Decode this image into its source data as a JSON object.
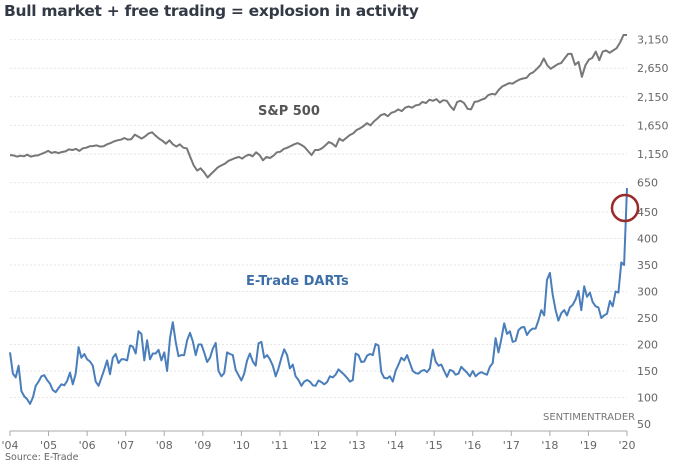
{
  "chart_data": {
    "type": "line",
    "title": "Bull market + free trading = explosion in activity",
    "source": "Source: E-Trade",
    "watermark": "SENTIMENTRADER",
    "x_ticks": [
      "'04",
      "'05",
      "'06",
      "'07",
      "'08",
      "'09",
      "'10",
      "'11",
      "'12",
      "'13",
      "'14",
      "'15",
      "'16",
      "'17",
      "'18",
      "'19",
      "'20"
    ],
    "x_range": [
      2004.0,
      2020.0
    ],
    "axes": [
      {
        "name": "sp500-axis",
        "ticks": [
          650,
          1150,
          1650,
          2150,
          2650,
          3150
        ],
        "tick_labels": [
          "650",
          "1,150",
          "1,650",
          "2,150",
          "2,650",
          "3,150"
        ]
      },
      {
        "name": "darts-axis",
        "ticks": [
          50,
          100,
          150,
          200,
          250,
          300,
          350,
          400,
          450
        ],
        "tick_labels": [
          "50",
          "100",
          "150",
          "200",
          "250",
          "300",
          "350",
          "400",
          "450"
        ]
      }
    ],
    "series": [
      {
        "name": "S&P 500",
        "label": "S&P 500",
        "color": "#777777",
        "x_start": 2004.0,
        "x_step": 0.1667,
        "values": [
          1130,
          1125,
          1105,
          1120,
          1110,
          1140,
          1105,
          1120,
          1125,
          1150,
          1175,
          1205,
          1170,
          1185,
          1165,
          1185,
          1195,
          1230,
          1220,
          1240,
          1205,
          1250,
          1260,
          1285,
          1290,
          1300,
          1280,
          1285,
          1320,
          1340,
          1370,
          1390,
          1400,
          1430,
          1400,
          1410,
          1490,
          1455,
          1420,
          1460,
          1510,
          1530,
          1470,
          1420,
          1380,
          1330,
          1390,
          1320,
          1280,
          1320,
          1260,
          1250,
          1100,
          950,
          860,
          900,
          830,
          740,
          800,
          860,
          920,
          950,
          980,
          1030,
          1055,
          1080,
          1100,
          1070,
          1115,
          1140,
          1110,
          1180,
          1130,
          1040,
          1100,
          1080,
          1120,
          1180,
          1190,
          1240,
          1260,
          1290,
          1320,
          1340,
          1310,
          1270,
          1200,
          1130,
          1220,
          1220,
          1250,
          1300,
          1360,
          1330,
          1280,
          1420,
          1380,
          1430,
          1480,
          1510,
          1570,
          1600,
          1640,
          1690,
          1650,
          1720,
          1770,
          1830,
          1850,
          1810,
          1870,
          1890,
          1930,
          1900,
          1960,
          1980,
          1960,
          2000,
          2010,
          2060,
          2040,
          2100,
          2080,
          2110,
          2050,
          2090,
          2080,
          1990,
          1920,
          2060,
          2080,
          2040,
          1940,
          1930,
          2060,
          2070,
          2100,
          2120,
          2180,
          2200,
          2190,
          2270,
          2330,
          2360,
          2390,
          2380,
          2420,
          2450,
          2470,
          2480,
          2550,
          2580,
          2640,
          2700,
          2820,
          2700,
          2640,
          2680,
          2720,
          2740,
          2820,
          2900,
          2900,
          2710,
          2760,
          2500,
          2700,
          2800,
          2830,
          2940,
          2790,
          2940,
          2960,
          2920,
          2960,
          3000,
          3100,
          3230,
          3230
        ]
      },
      {
        "name": "E-Trade DARTs",
        "label": "E-Trade DARTs",
        "color": "#4a7ebb",
        "x_start": 2004.0,
        "x_step": 0.0833,
        "values": [
          185,
          145,
          138,
          160,
          112,
          102,
          97,
          88,
          100,
          122,
          130,
          140,
          142,
          133,
          126,
          114,
          110,
          118,
          125,
          123,
          131,
          147,
          125,
          145,
          195,
          175,
          182,
          172,
          168,
          160,
          130,
          122,
          137,
          153,
          170,
          144,
          175,
          182,
          165,
          172,
          172,
          170,
          198,
          196,
          183,
          225,
          220,
          170,
          208,
          172,
          183,
          183,
          190,
          170,
          185,
          150,
          212,
          242,
          205,
          178,
          180,
          180,
          208,
          222,
          206,
          180,
          200,
          200,
          185,
          167,
          175,
          192,
          203,
          150,
          140,
          146,
          185,
          182,
          180,
          152,
          142,
          132,
          145,
          170,
          183,
          168,
          160,
          202,
          205,
          175,
          180,
          172,
          160,
          140,
          155,
          175,
          191,
          180,
          155,
          162,
          140,
          133,
          122,
          130,
          133,
          130,
          123,
          122,
          132,
          129,
          125,
          129,
          140,
          138,
          143,
          153,
          148,
          143,
          137,
          130,
          133,
          183,
          180,
          167,
          168,
          179,
          182,
          180,
          201,
          198,
          148,
          137,
          136,
          140,
          130,
          150,
          162,
          175,
          170,
          180,
          165,
          150,
          146,
          145,
          150,
          152,
          148,
          155,
          190,
          168,
          160,
          162,
          150,
          139,
          152,
          150,
          143,
          145,
          158,
          152,
          147,
          140,
          150,
          140,
          145,
          148,
          145,
          143,
          158,
          165,
          212,
          185,
          210,
          240,
          220,
          225,
          205,
          207,
          227,
          232,
          233,
          218,
          226,
          230,
          230,
          245,
          265,
          255,
          322,
          335,
          294,
          265,
          245,
          259,
          265,
          255,
          270,
          275,
          285,
          301,
          265,
          310,
          290,
          298,
          280,
          272,
          270,
          250,
          255,
          258,
          282,
          272,
          300,
          298,
          355,
          350,
          495
        ]
      }
    ],
    "annotations": [
      "circle around latest E-Trade DARTs value"
    ],
    "legend": "inline labels"
  }
}
